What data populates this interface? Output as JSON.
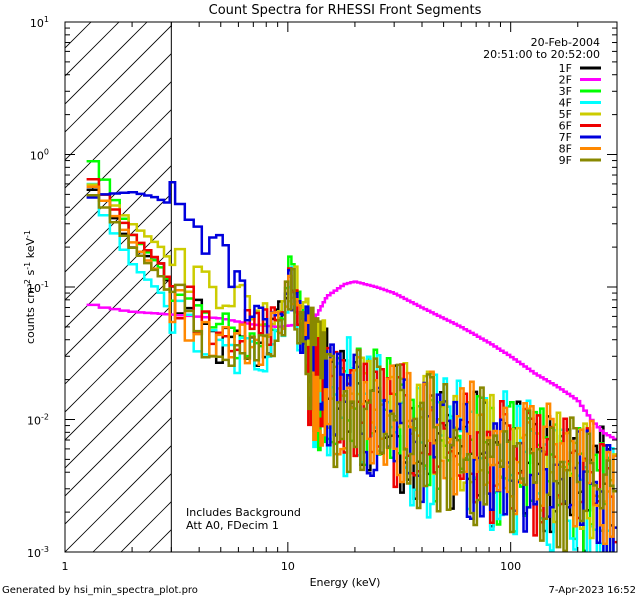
{
  "chart_data": {
    "type": "line",
    "title": "Count Spectra for RHESSI Front Segments",
    "xlabel": "Energy (keV)",
    "ylabel_base": "counts cm",
    "ylabel_exp1": "-2",
    "ylabel_mid": " s",
    "ylabel_exp2": "-1",
    "ylabel_unit": " keV",
    "ylabel_exp3": "-1",
    "xscale": "log",
    "yscale": "log",
    "xlim": [
      1,
      300
    ],
    "ylim": [
      0.001,
      10
    ],
    "x_ticks": [
      {
        "v": 1,
        "label": "1"
      },
      {
        "v": 10,
        "label": "10"
      },
      {
        "v": 100,
        "label": "100"
      }
    ],
    "y_ticks": [
      {
        "v": 0.001,
        "base": "10",
        "exp": "-3"
      },
      {
        "v": 0.01,
        "base": "10",
        "exp": "-2"
      },
      {
        "v": 0.1,
        "base": "10",
        "exp": "-1"
      },
      {
        "v": 1,
        "base": "10",
        "exp": "0"
      },
      {
        "v": 10,
        "base": "10",
        "exp": "1"
      }
    ],
    "date": "20-Feb-2004",
    "time_range": "20:51:00 to 20:52:00",
    "hatched_region_keV": [
      1,
      3
    ],
    "annotation_line1": "Includes Background",
    "annotation_line2": "Att A0, FDecim 1",
    "series": [
      {
        "name": "1F",
        "color": "#000000",
        "profile": [
          [
            1.25,
            0.6
          ],
          [
            1.5,
            0.45
          ],
          [
            2,
            0.2
          ],
          [
            2.7,
            0.15
          ],
          [
            3,
            0.09
          ],
          [
            4,
            0.05
          ],
          [
            5,
            0.035
          ],
          [
            6,
            0.035
          ],
          [
            7,
            0.032
          ],
          [
            8,
            0.038
          ],
          [
            9,
            0.05
          ],
          [
            10,
            0.09
          ],
          [
            10.5,
            0.11
          ],
          [
            11,
            0.07
          ],
          [
            12,
            0.03
          ],
          [
            13,
            0.018
          ],
          [
            20,
            0.012
          ],
          [
            30,
            0.009
          ],
          [
            50,
            0.007
          ],
          [
            80,
            0.005
          ],
          [
            120,
            0.004
          ],
          [
            200,
            0.0035
          ],
          [
            280,
            0.0025
          ]
        ],
        "noise": 0.32
      },
      {
        "name": "2F",
        "color": "#ff00ff",
        "profile": [
          [
            1.25,
            0.075
          ],
          [
            1.5,
            0.07
          ],
          [
            2,
            0.065
          ],
          [
            3,
            0.062
          ],
          [
            5,
            0.058
          ],
          [
            7,
            0.052
          ],
          [
            9,
            0.05
          ],
          [
            11,
            0.052
          ],
          [
            13,
            0.055
          ],
          [
            15,
            0.085
          ],
          [
            18,
            0.105
          ],
          [
            20,
            0.11
          ],
          [
            25,
            0.1
          ],
          [
            30,
            0.09
          ],
          [
            40,
            0.07
          ],
          [
            60,
            0.05
          ],
          [
            80,
            0.038
          ],
          [
            100,
            0.03
          ],
          [
            130,
            0.022
          ],
          [
            160,
            0.018
          ],
          [
            200,
            0.014
          ],
          [
            230,
            0.01
          ],
          [
            260,
            0.008
          ],
          [
            300,
            0.007
          ]
        ],
        "noise": 0.05
      },
      {
        "name": "3F",
        "color": "#00ff00",
        "profile": [
          [
            1.25,
            1.05
          ],
          [
            1.5,
            0.65
          ],
          [
            2,
            0.25
          ],
          [
            2.7,
            0.14
          ],
          [
            3,
            0.1
          ],
          [
            4,
            0.06
          ],
          [
            5,
            0.045
          ],
          [
            6,
            0.04
          ],
          [
            7,
            0.038
          ],
          [
            8,
            0.045
          ],
          [
            9,
            0.06
          ],
          [
            10,
            0.1
          ],
          [
            10.5,
            0.13
          ],
          [
            11,
            0.08
          ],
          [
            12,
            0.04
          ],
          [
            13,
            0.02
          ],
          [
            20,
            0.013
          ],
          [
            30,
            0.009
          ],
          [
            50,
            0.007
          ],
          [
            80,
            0.005
          ],
          [
            120,
            0.004
          ],
          [
            200,
            0.0033
          ],
          [
            280,
            0.002
          ]
        ],
        "noise": 0.32
      },
      {
        "name": "4F",
        "color": "#00ffff",
        "profile": [
          [
            1.25,
            0.8
          ],
          [
            1.5,
            0.35
          ],
          [
            2,
            0.15
          ],
          [
            2.7,
            0.09
          ],
          [
            3,
            0.06
          ],
          [
            4,
            0.04
          ],
          [
            5,
            0.03
          ],
          [
            6,
            0.03
          ],
          [
            7,
            0.03
          ],
          [
            8,
            0.035
          ],
          [
            9,
            0.05
          ],
          [
            10,
            0.08
          ],
          [
            10.5,
            0.1
          ],
          [
            11,
            0.06
          ],
          [
            12,
            0.03
          ],
          [
            13,
            0.017
          ],
          [
            20,
            0.011
          ],
          [
            30,
            0.008
          ],
          [
            50,
            0.006
          ],
          [
            80,
            0.005
          ],
          [
            120,
            0.004
          ],
          [
            200,
            0.003
          ],
          [
            280,
            0.0025
          ]
        ],
        "noise": 0.35
      },
      {
        "name": "5F",
        "color": "#cccc00",
        "profile": [
          [
            1.25,
            0.65
          ],
          [
            1.5,
            0.5
          ],
          [
            2,
            0.3
          ],
          [
            2.7,
            0.2
          ],
          [
            3,
            0.15
          ],
          [
            4,
            0.12
          ],
          [
            5,
            0.1
          ],
          [
            6,
            0.085
          ],
          [
            7,
            0.07
          ],
          [
            8,
            0.06
          ],
          [
            9,
            0.065
          ],
          [
            10,
            0.1
          ],
          [
            10.5,
            0.12
          ],
          [
            11,
            0.1
          ],
          [
            12,
            0.05
          ],
          [
            13,
            0.025
          ],
          [
            20,
            0.014
          ],
          [
            30,
            0.011
          ],
          [
            50,
            0.008
          ],
          [
            80,
            0.006
          ],
          [
            120,
            0.005
          ],
          [
            200,
            0.004
          ],
          [
            280,
            0.003
          ]
        ],
        "noise": 0.28
      },
      {
        "name": "6F",
        "color": "#ee0000",
        "profile": [
          [
            1.25,
            0.75
          ],
          [
            1.5,
            0.5
          ],
          [
            2,
            0.25
          ],
          [
            2.7,
            0.15
          ],
          [
            3,
            0.1
          ],
          [
            4,
            0.065
          ],
          [
            5,
            0.05
          ],
          [
            6,
            0.045
          ],
          [
            7,
            0.045
          ],
          [
            8,
            0.05
          ],
          [
            9,
            0.06
          ],
          [
            10,
            0.09
          ],
          [
            10.5,
            0.11
          ],
          [
            11,
            0.08
          ],
          [
            12,
            0.035
          ],
          [
            13,
            0.02
          ],
          [
            20,
            0.012
          ],
          [
            30,
            0.009
          ],
          [
            50,
            0.007
          ],
          [
            80,
            0.005
          ],
          [
            120,
            0.004
          ],
          [
            200,
            0.0035
          ],
          [
            280,
            0.0025
          ]
        ],
        "noise": 0.3
      },
      {
        "name": "7F",
        "color": "#0000dd",
        "profile": [
          [
            1.25,
            0.46
          ],
          [
            1.5,
            0.5
          ],
          [
            2,
            0.52
          ],
          [
            2.5,
            0.48
          ],
          [
            3,
            0.42
          ],
          [
            3.5,
            0.35
          ],
          [
            4,
            0.28
          ],
          [
            5,
            0.17
          ],
          [
            6,
            0.1
          ],
          [
            7,
            0.07
          ],
          [
            8,
            0.06
          ],
          [
            9,
            0.065
          ],
          [
            10,
            0.09
          ],
          [
            10.5,
            0.1
          ],
          [
            11,
            0.07
          ],
          [
            12,
            0.03
          ],
          [
            13,
            0.018
          ],
          [
            20,
            0.011
          ],
          [
            30,
            0.008
          ],
          [
            50,
            0.006
          ],
          [
            80,
            0.005
          ],
          [
            120,
            0.004
          ],
          [
            200,
            0.0035
          ],
          [
            280,
            0.0025
          ]
        ],
        "noise": 0.3
      },
      {
        "name": "8F",
        "color": "#ff8800",
        "profile": [
          [
            1.25,
            0.65
          ],
          [
            1.5,
            0.45
          ],
          [
            2,
            0.22
          ],
          [
            2.7,
            0.12
          ],
          [
            3,
            0.08
          ],
          [
            4,
            0.05
          ],
          [
            5,
            0.04
          ],
          [
            6,
            0.038
          ],
          [
            7,
            0.036
          ],
          [
            8,
            0.04
          ],
          [
            9,
            0.055
          ],
          [
            10,
            0.085
          ],
          [
            10.5,
            0.1
          ],
          [
            11,
            0.07
          ],
          [
            12,
            0.035
          ],
          [
            13,
            0.02
          ],
          [
            20,
            0.014
          ],
          [
            30,
            0.01
          ],
          [
            50,
            0.008
          ],
          [
            80,
            0.006
          ],
          [
            120,
            0.005
          ],
          [
            200,
            0.0045
          ],
          [
            280,
            0.003
          ]
        ],
        "noise": 0.3
      },
      {
        "name": "9F",
        "color": "#888800",
        "profile": [
          [
            1.25,
            0.55
          ],
          [
            1.5,
            0.4
          ],
          [
            2,
            0.2
          ],
          [
            2.7,
            0.12
          ],
          [
            3,
            0.08
          ],
          [
            4,
            0.05
          ],
          [
            5,
            0.04
          ],
          [
            6,
            0.035
          ],
          [
            7,
            0.033
          ],
          [
            8,
            0.04
          ],
          [
            9,
            0.05
          ],
          [
            10,
            0.08
          ],
          [
            10.5,
            0.1
          ],
          [
            11,
            0.07
          ],
          [
            12,
            0.03
          ],
          [
            13,
            0.018
          ],
          [
            20,
            0.011
          ],
          [
            30,
            0.008
          ],
          [
            50,
            0.006
          ],
          [
            80,
            0.005
          ],
          [
            120,
            0.004
          ],
          [
            200,
            0.0035
          ],
          [
            280,
            0.0025
          ]
        ],
        "noise": 0.35
      }
    ]
  },
  "footer": {
    "generated_by": "Generated by hsi_min_spectra_plot.pro",
    "timestamp": "7-Apr-2023 16:52"
  }
}
